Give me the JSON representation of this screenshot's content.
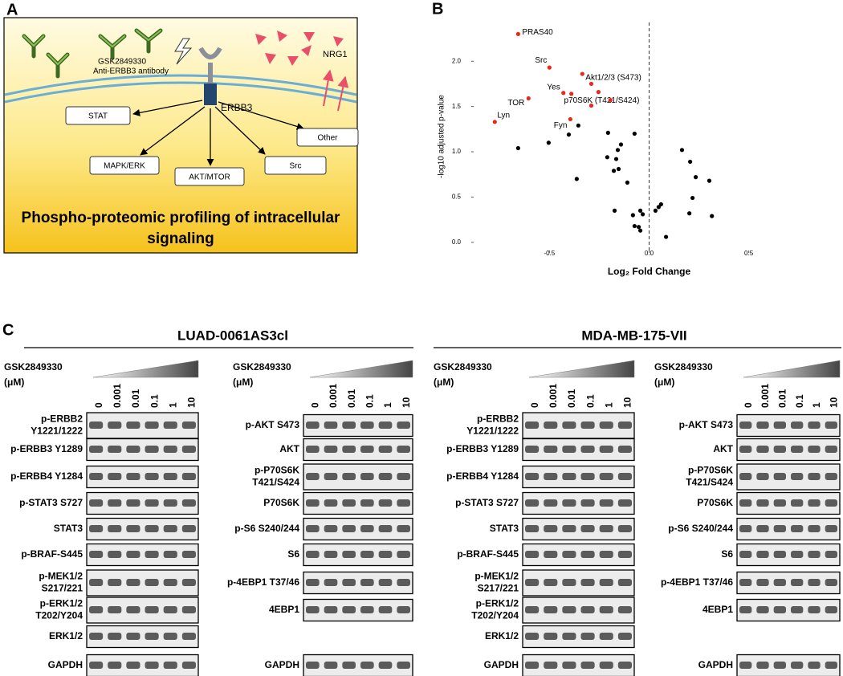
{
  "panel_a": {
    "label": "A",
    "antibody_name": "GSK2849330",
    "antibody_desc": "Anti-ERBB3 antibody",
    "ligand": "NRG1",
    "receptor": "ERBB3",
    "pathways": [
      "STAT",
      "MAPK/ERK",
      "AKT/MTOR",
      "Src",
      "Other"
    ],
    "title_lines": [
      "Phospho-proteomic profiling of intracellular",
      "signaling"
    ]
  },
  "panel_b_label": "B",
  "chart_data": {
    "type": "scatter",
    "x_label": "Log₂ Fold Change",
    "y_label": "-log10 adjusted p-value",
    "xlim": [
      -0.88,
      0.57
    ],
    "ylim": [
      -0.09,
      2.41
    ],
    "xticks": [
      {
        "value": -0.5,
        "label": "-0.5"
      },
      {
        "value": 0,
        "label": "0.0"
      },
      {
        "value": 0.5,
        "label": "0.5"
      }
    ],
    "yticks": [
      {
        "value": 0,
        "label": "0.0"
      },
      {
        "value": 0.5,
        "label": "0.5"
      },
      {
        "value": 1,
        "label": "1.0"
      },
      {
        "value": 1.5,
        "label": "1.5"
      },
      {
        "value": 2,
        "label": "2.0"
      }
    ],
    "reference_line_x": 0,
    "series": [
      {
        "color": "#e8291c",
        "x": [
          -0.657,
          -0.5,
          -0.335,
          -0.29,
          -0.43,
          -0.39,
          -0.254,
          -0.29,
          -0.194,
          -0.605,
          -0.774,
          -0.395
        ],
        "values": [
          2.3,
          1.93,
          1.86,
          1.75,
          1.65,
          1.64,
          1.66,
          1.51,
          1.57,
          1.59,
          1.33,
          1.36
        ],
        "point_labels": [
          "PRAS40",
          "Src",
          "Akt1/2/3 (S473)",
          null,
          "Yes",
          null,
          null,
          "p70S6K (T421/S424)",
          null,
          "TOR",
          "Lyn",
          "Fyn"
        ]
      },
      {
        "color": "#000000",
        "x": [
          -0.657,
          -0.504,
          -0.355,
          -0.363,
          -0.403,
          -0.206,
          -0.073,
          -0.21,
          -0.157,
          -0.141,
          -0.165,
          -0.153,
          -0.177,
          -0.109,
          -0.173,
          -0.044,
          -0.032,
          -0.081,
          0.032,
          0.048,
          0.06,
          -0.073,
          -0.052,
          -0.044,
          0.085,
          0.165,
          0.206,
          0.234,
          0.218,
          0.202,
          0.302,
          0.315
        ],
        "values": [
          1.04,
          1.1,
          1.29,
          0.7,
          1.19,
          1.21,
          1.2,
          0.94,
          1.02,
          1.08,
          0.92,
          0.81,
          0.79,
          0.66,
          0.35,
          0.35,
          0.31,
          0.3,
          0.35,
          0.39,
          0.42,
          0.18,
          0.17,
          0.13,
          0.06,
          1.02,
          0.89,
          0.72,
          0.49,
          0.32,
          0.68,
          0.29
        ]
      }
    ]
  },
  "panel_c": {
    "label": "C",
    "dose_label": [
      "GSK2849330",
      "(μM)"
    ],
    "doses": [
      "0",
      "0.001",
      "0.01",
      "0.1",
      "1",
      "10"
    ],
    "cell_lines": [
      {
        "name": "LUAD-0061AS3cl",
        "columns": [
          [
            [
              "p-ERBB2",
              "Y1221/1222"
            ],
            [
              "p-ERBB3 Y1289"
            ],
            [
              "p-ERBB4 Y1284"
            ],
            [
              "p-STAT3 S727"
            ],
            [
              "STAT3"
            ],
            [
              "p-BRAF-S445"
            ],
            [
              "p-MEK1/2",
              "S217/221"
            ],
            [
              "p-ERK1/2",
              "T202/Y204"
            ],
            [
              "ERK1/2"
            ],
            [
              "GAPDH"
            ]
          ],
          [
            [
              "p-AKT S473"
            ],
            [
              "AKT"
            ],
            [
              "p-P70S6K",
              "T421/S424"
            ],
            [
              "P70S6K"
            ],
            [
              "p-S6 S240/244"
            ],
            [
              "S6"
            ],
            [
              "p-4EBP1 T37/46"
            ],
            [
              "4EBP1"
            ],
            [
              "GAPDH"
            ]
          ]
        ]
      },
      {
        "name": "MDA-MB-175-VII",
        "columns": [
          [
            [
              "p-ERBB2",
              "Y1221/1222"
            ],
            [
              "p-ERBB3 Y1289"
            ],
            [
              "p-ERBB4 Y1284"
            ],
            [
              "p-STAT3 S727"
            ],
            [
              "STAT3"
            ],
            [
              "p-BRAF-S445"
            ],
            [
              "p-MEK1/2",
              "S217/221"
            ],
            [
              "p-ERK1/2",
              "T202/Y204"
            ],
            [
              "ERK1/2"
            ],
            [
              "GAPDH"
            ]
          ],
          [
            [
              "p-AKT S473"
            ],
            [
              "AKT"
            ],
            [
              "p-P70S6K",
              "T421/S424"
            ],
            [
              "P70S6K"
            ],
            [
              "p-S6 S240/244"
            ],
            [
              "S6"
            ],
            [
              "p-4EBP1 T37/46"
            ],
            [
              "4EBP1"
            ],
            [
              "GAPDH"
            ]
          ]
        ]
      }
    ]
  }
}
